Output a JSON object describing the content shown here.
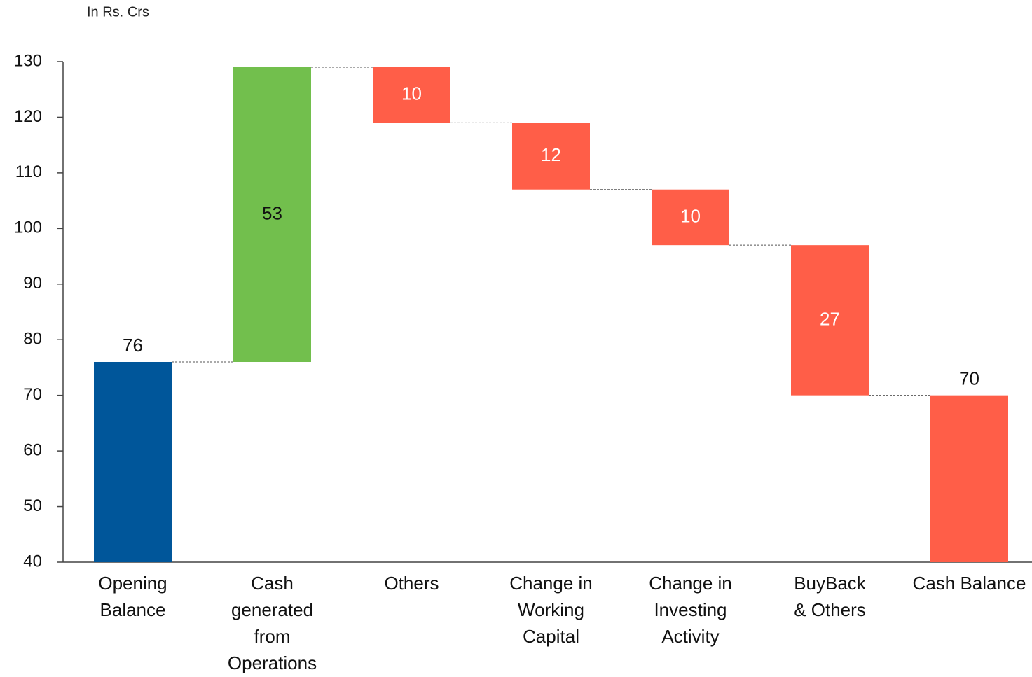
{
  "chart_data": {
    "type": "waterfall",
    "unit_note": "In Rs. Crs",
    "categories": [
      [
        "Opening",
        "Balance"
      ],
      [
        "Cash",
        "generated",
        "from",
        "Operations"
      ],
      [
        "Others"
      ],
      [
        "Change in",
        "Working",
        "Capital"
      ],
      [
        "Change in",
        "Investing",
        "Activity"
      ],
      [
        "BuyBack",
        "& Others"
      ],
      [
        "Cash Balance"
      ]
    ],
    "values": [
      76,
      53,
      -10,
      -12,
      -10,
      -27,
      70
    ],
    "value_labels": [
      "76",
      "53",
      "10",
      "12",
      "10",
      "27",
      "70"
    ],
    "colors": [
      "#00569a",
      "#72bf4d",
      "#ff5e48",
      "#ff5e48",
      "#ff5e48",
      "#ff5e48",
      "#ff5e48"
    ],
    "ylim": [
      40,
      130
    ],
    "yticks": [
      40,
      50,
      60,
      70,
      80,
      90,
      100,
      110,
      120,
      130
    ]
  }
}
